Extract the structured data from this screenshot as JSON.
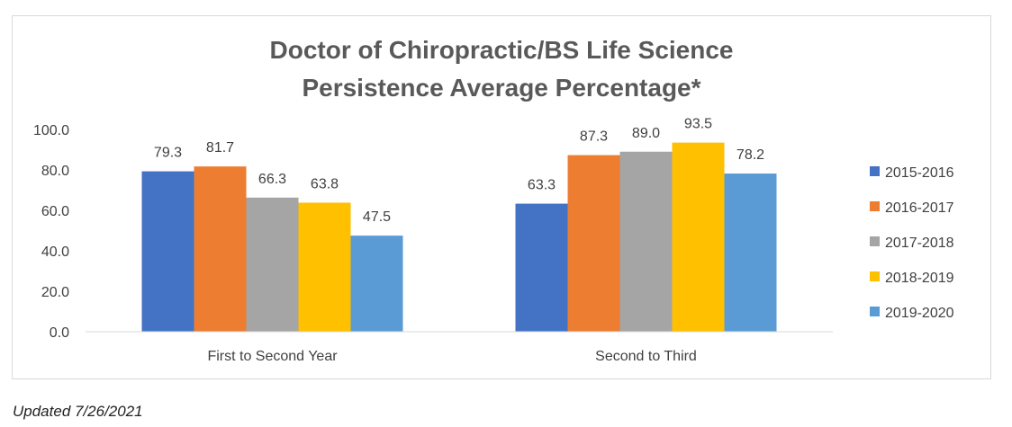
{
  "chart_data": {
    "type": "bar",
    "title_lines": [
      "Doctor of Chiropractic/BS Life Science",
      "Persistence Average Percentage*"
    ],
    "categories": [
      "First to Second Year",
      "Second to Third"
    ],
    "series": [
      {
        "name": "2015-2016",
        "color": "#4472C4",
        "values": [
          79.3,
          63.3
        ]
      },
      {
        "name": "2016-2017",
        "color": "#ED7D31",
        "values": [
          81.7,
          87.3
        ]
      },
      {
        "name": "2017-2018",
        "color": "#A5A5A5",
        "values": [
          66.3,
          89.0
        ]
      },
      {
        "name": "2018-2019",
        "color": "#FFC000",
        "values": [
          63.8,
          93.5
        ]
      },
      {
        "name": "2019-2020",
        "color": "#5B9BD5",
        "values": [
          47.5,
          78.2
        ]
      }
    ],
    "ylim": [
      0,
      100
    ],
    "yticks": [
      0,
      20,
      40,
      60,
      80,
      100
    ],
    "ytick_labels": [
      "0.0",
      "20.0",
      "40.0",
      "60.0",
      "80.0",
      "100.0"
    ],
    "grid": false,
    "legend_position": "right"
  },
  "footnote": "Updated 7/26/2021"
}
